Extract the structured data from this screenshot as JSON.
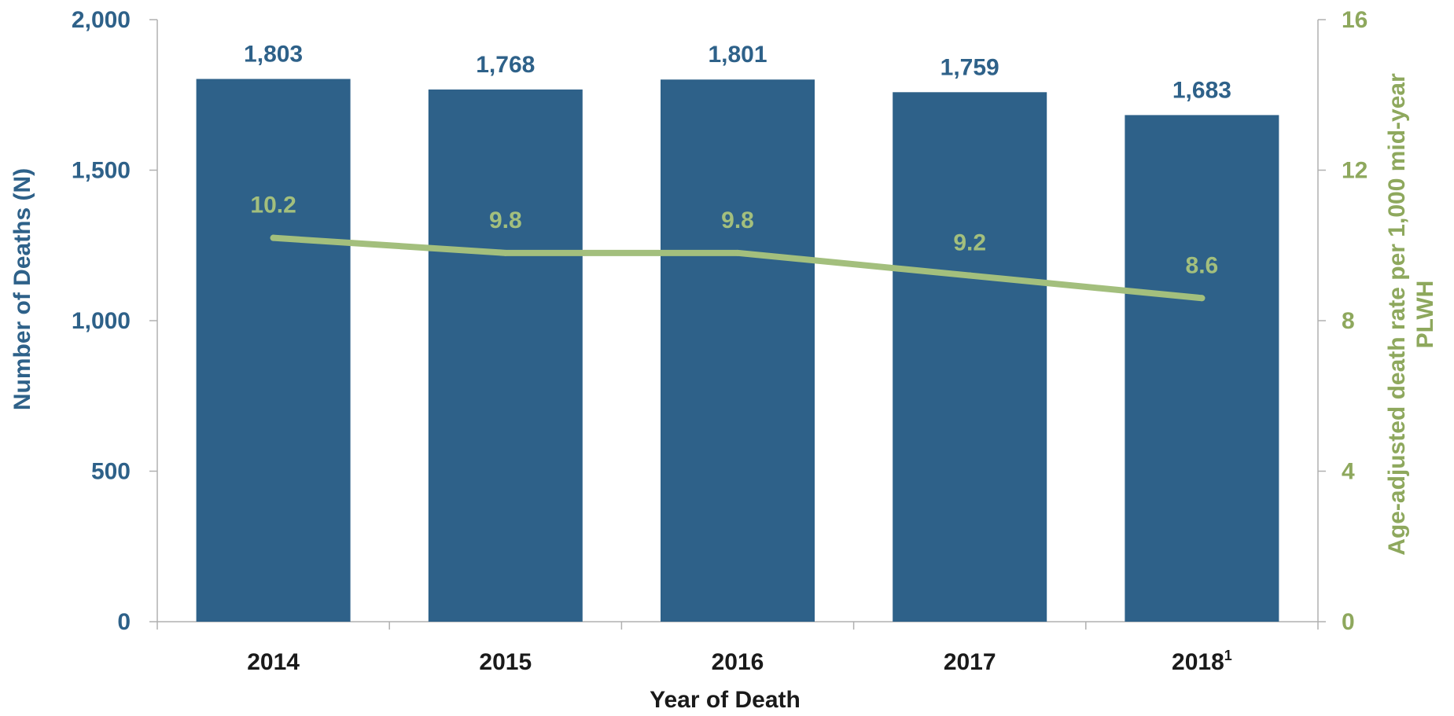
{
  "colors": {
    "bar": "#2e6189",
    "left_axis_text": "#2e6189",
    "line": "#a3bf7d",
    "line_labels": "#a3bf7d",
    "right_axis_text": "#8ea85d",
    "axis_line": "#b0b0b0",
    "category_text": "#1a1a1a"
  },
  "chart_data": {
    "type": "bar",
    "combo": "bar + line (secondary axis)",
    "categories": [
      "2014",
      "2015",
      "2016",
      "2017",
      "2018"
    ],
    "category_superscripts": [
      "",
      "",
      "",
      "",
      "1"
    ],
    "series": [
      {
        "type": "bar",
        "axis": "left",
        "values": [
          1803,
          1768,
          1801,
          1759,
          1683
        ],
        "labels": [
          "1,803",
          "1,768",
          "1,801",
          "1,759",
          "1,683"
        ]
      },
      {
        "type": "line",
        "axis": "right",
        "values": [
          10.2,
          9.8,
          9.8,
          9.2,
          8.6
        ],
        "labels": [
          "10.2",
          "9.8",
          "9.8",
          "9.2",
          "8.6"
        ]
      }
    ],
    "xlabel": "Year of Death",
    "ylabel": "Number of Deaths (N)",
    "ylabel_right_line1": "Age-adjusted  death rate per 1,000 mid-year",
    "ylabel_right_line2": "PLWH",
    "ylim": [
      0,
      2000
    ],
    "ylim_right": [
      0,
      16
    ],
    "yticks": [
      0,
      500,
      1000,
      1500,
      2000
    ],
    "ytick_labels": [
      "0",
      "500",
      "1,000",
      "1,500",
      "2,000"
    ],
    "yticks_right": [
      0,
      4,
      8,
      12,
      16
    ],
    "ytick_labels_right": [
      "0",
      "4",
      "8",
      "12",
      "16"
    ],
    "grid": false,
    "legend": "none"
  }
}
